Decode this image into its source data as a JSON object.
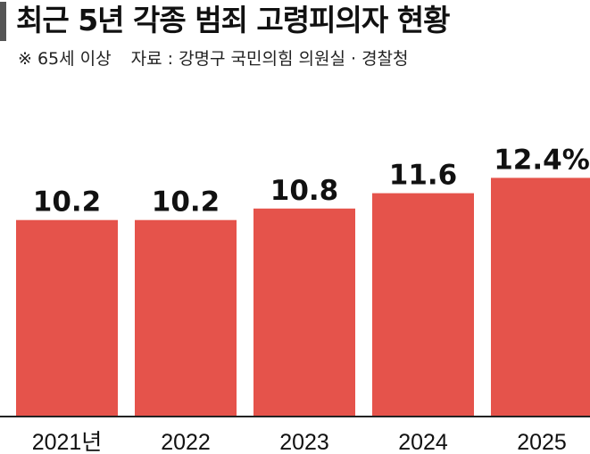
{
  "header": {
    "title": "최근 5년 각종 범죄 고령피의자 현황",
    "note": "※ 65세 이상",
    "source": "자료 : 강명구 국민의힘 의원실 · 경찰청"
  },
  "colors": {
    "bar": "#e5534b",
    "axis": "#222222",
    "title_bar": "#555555"
  },
  "chart_data": {
    "type": "bar",
    "categories": [
      "2021년",
      "2022",
      "2023",
      "2024",
      "2025"
    ],
    "values": [
      10.2,
      10.2,
      10.8,
      11.6,
      12.4
    ],
    "value_labels": [
      "10.2",
      "10.2",
      "10.8",
      "11.6",
      "12.4%"
    ],
    "unit": "%",
    "title": "최근 5년 각종 범죄 고령피의자 현황",
    "xlabel": "",
    "ylabel": "",
    "grid": false,
    "legend": "none"
  }
}
